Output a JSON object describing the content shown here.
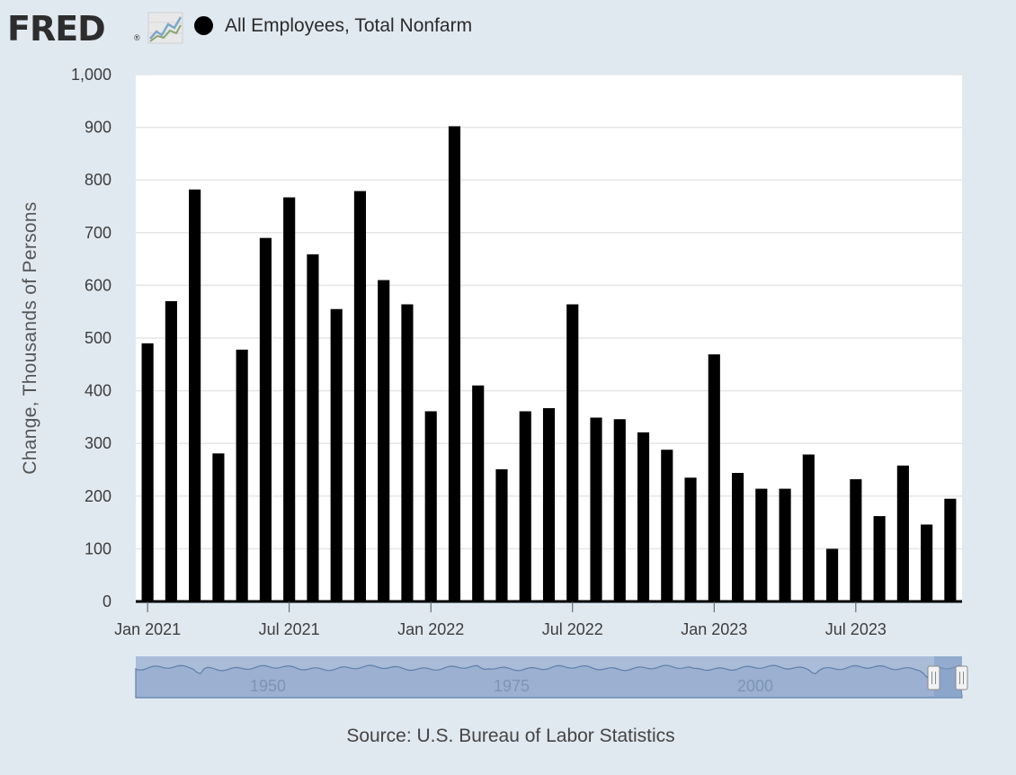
{
  "header": {
    "logo_text": "FRED",
    "logo_reg": "®",
    "series_label": "All Employees, Total Nonfarm"
  },
  "colors": {
    "background": "#e1e9f0",
    "bar": "#000000",
    "plot_background": "#ffffff",
    "gridline": "#e6e6e6",
    "navigator_fill": "#9fb3d3"
  },
  "chart_data": {
    "type": "bar",
    "title": "",
    "ylabel": "Change, Thousands of Persons",
    "xlabel": "",
    "ylim": [
      0,
      1000
    ],
    "yticks": [
      0,
      100,
      200,
      300,
      400,
      500,
      600,
      700,
      800,
      900,
      1000
    ],
    "ytick_labels": [
      "0",
      "100",
      "200",
      "300",
      "400",
      "500",
      "600",
      "700",
      "800",
      "900",
      "1,000"
    ],
    "grid": true,
    "legend_position": "top-left",
    "xticks": [
      {
        "label": "Jan 2021",
        "index": 0
      },
      {
        "label": "Jul 2021",
        "index": 6
      },
      {
        "label": "Jan 2022",
        "index": 12
      },
      {
        "label": "Jul 2022",
        "index": 18
      },
      {
        "label": "Jan 2023",
        "index": 24
      },
      {
        "label": "Jul 2023",
        "index": 30
      }
    ],
    "categories": [
      "2021-01",
      "2021-02",
      "2021-03",
      "2021-04",
      "2021-05",
      "2021-06",
      "2021-07",
      "2021-08",
      "2021-09",
      "2021-10",
      "2021-11",
      "2021-12",
      "2022-01",
      "2022-02",
      "2022-03",
      "2022-04",
      "2022-05",
      "2022-06",
      "2022-07",
      "2022-08",
      "2022-09",
      "2022-10",
      "2022-11",
      "2022-12",
      "2023-01",
      "2023-02",
      "2023-03",
      "2023-04",
      "2023-05",
      "2023-06",
      "2023-07",
      "2023-08",
      "2023-09",
      "2023-10",
      "2023-11"
    ],
    "series": [
      {
        "name": "All Employees, Total Nonfarm",
        "values": [
          490,
          570,
          782,
          281,
          478,
          690,
          767,
          659,
          555,
          779,
          610,
          564,
          361,
          902,
          410,
          251,
          361,
          367,
          564,
          349,
          346,
          321,
          288,
          235,
          469,
          244,
          214,
          214,
          279,
          100,
          232,
          162,
          258,
          146,
          195
        ]
      }
    ]
  },
  "navigator": {
    "year_labels": [
      "1950",
      "1975",
      "2000"
    ]
  },
  "source": "Source: U.S. Bureau of Labor Statistics"
}
